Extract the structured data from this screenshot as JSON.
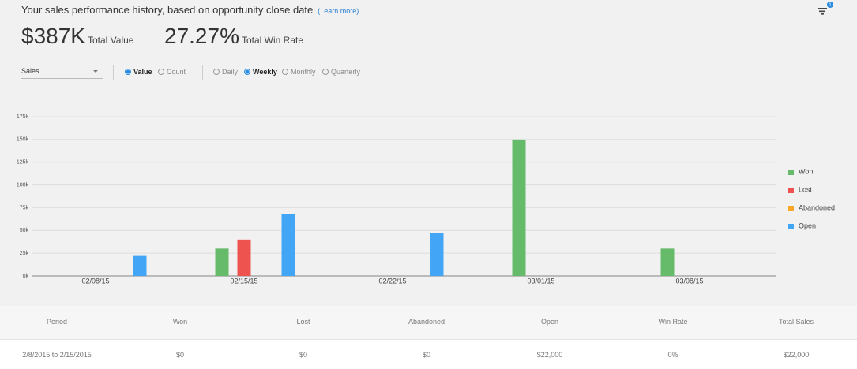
{
  "header": {
    "title": "Your sales performance history, based on opportunity close date",
    "learn_more": "(Learn more)",
    "filter_count": "1"
  },
  "stats": [
    {
      "value": "$387K",
      "label": "Total Value"
    },
    {
      "value": "27.27%",
      "label": "Total Win Rate"
    }
  ],
  "controls": {
    "dropdown": "Sales",
    "measure": {
      "options": [
        "Value",
        "Count"
      ],
      "selected": 0
    },
    "period": {
      "options": [
        "Daily",
        "Weekly",
        "Monthly",
        "Quarterly"
      ],
      "selected": 1
    }
  },
  "chart_data": {
    "type": "bar",
    "categories": [
      "02/08/15",
      "02/15/15",
      "02/22/15",
      "03/01/15",
      "03/08/15"
    ],
    "series": [
      {
        "name": "Won",
        "color": "#66bb6a",
        "values": [
          0,
          30000,
          0,
          150000,
          30000
        ]
      },
      {
        "name": "Lost",
        "color": "#ef5350",
        "values": [
          0,
          40000,
          0,
          0,
          0
        ]
      },
      {
        "name": "Abandoned",
        "color": "#ffa726",
        "values": [
          0,
          0,
          0,
          0,
          0
        ]
      },
      {
        "name": "Open",
        "color": "#42a5f5",
        "values": [
          22000,
          68000,
          47000,
          0,
          0
        ]
      }
    ],
    "ylim": [
      0,
      175000
    ],
    "yticks": [
      {
        "value": 0,
        "label": "0k"
      },
      {
        "value": 25000,
        "label": "25k"
      },
      {
        "value": 50000,
        "label": "50k"
      },
      {
        "value": 75000,
        "label": "75k"
      },
      {
        "value": 100000,
        "label": "100k"
      },
      {
        "value": 125000,
        "label": "125k"
      },
      {
        "value": 150000,
        "label": "150k"
      },
      {
        "value": 175000,
        "label": "175k"
      }
    ],
    "grid": true,
    "legend": "right"
  },
  "table": {
    "columns": [
      "Period",
      "Won",
      "Lost",
      "Abandoned",
      "Open",
      "Win Rate",
      "Total Sales"
    ],
    "rows": [
      [
        "2/8/2015 to 2/15/2015",
        "$0",
        "$0",
        "$0",
        "$22,000",
        "0%",
        "$22,000"
      ]
    ]
  }
}
